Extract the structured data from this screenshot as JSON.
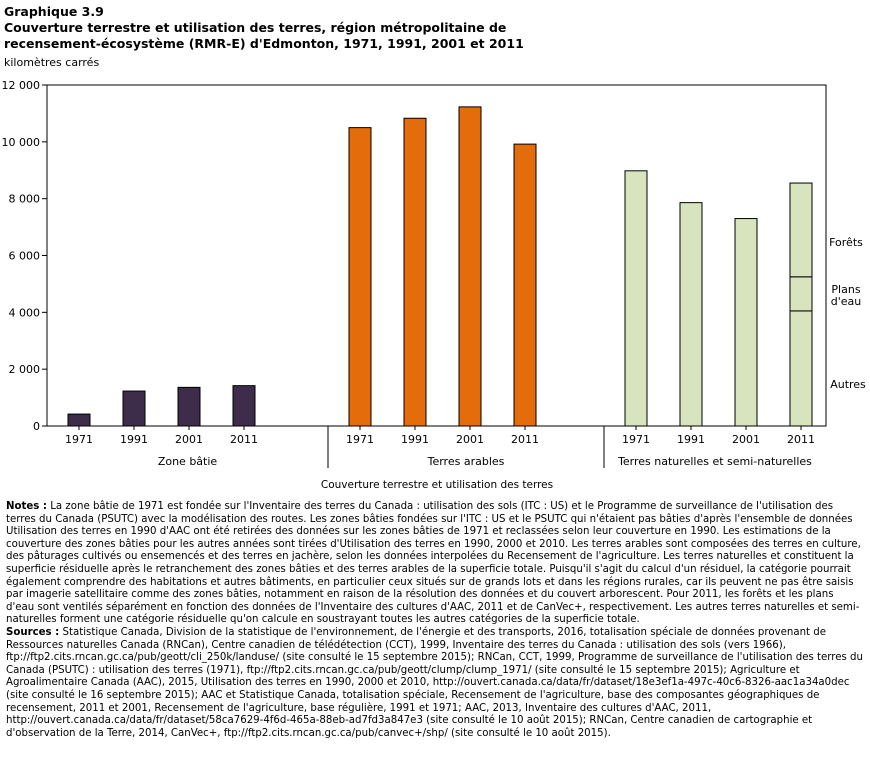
{
  "title": {
    "line1": "Graphique  3.9",
    "line2": "Couverture terrestre et utilisation des terres, région métropolitaine de",
    "line3": "recensement-écosystème (RMR-E) d'Edmonton, 1971, 1991, 2001 et 2011"
  },
  "unit_label": "kilomètres carrés",
  "colors": {
    "zone_batie": "#3d2d4a",
    "terres_arables": "#e46c0a",
    "terres_naturelles": "#d7e4bd",
    "axis": "#000000"
  },
  "chart_data": {
    "type": "bar",
    "title": "Couverture terrestre et utilisation des terres, région métropolitaine de recensement-écosystème (RMR-E) d'Edmonton, 1971, 1991, 2001 et 2011",
    "ylabel": "kilomètres carrés",
    "xlabel": "Couverture terrestre et utilisation des terres",
    "ylim": [
      0,
      12000
    ],
    "yticks": [
      0,
      2000,
      4000,
      6000,
      8000,
      10000,
      12000
    ],
    "ytick_labels": [
      "0",
      "2 000",
      "4 000",
      "6 000",
      "8 000",
      "10 000",
      "12 000"
    ],
    "groups": [
      {
        "name": "Zone bâtie",
        "color_key": "zone_batie",
        "categories": [
          "1971",
          "1991",
          "2001",
          "2011"
        ],
        "values": [
          420,
          1230,
          1360,
          1420
        ]
      },
      {
        "name": "Terres arables",
        "color_key": "terres_arables",
        "categories": [
          "1971",
          "1991",
          "2001",
          "2011"
        ],
        "values": [
          10500,
          10830,
          11230,
          9920
        ]
      },
      {
        "name": "Terres naturelles et semi-naturelles",
        "color_key": "terres_naturelles",
        "categories": [
          "1971",
          "1991",
          "2001",
          "2011"
        ],
        "values": [
          8980,
          7860,
          7300,
          8550
        ]
      }
    ],
    "stacked_2011_naturelles": [
      {
        "name": "Autres",
        "value": 4050
      },
      {
        "name": "Plans d'eau",
        "value": 1200
      },
      {
        "name": "Forêts",
        "value": 3300
      }
    ],
    "annotations": {
      "forets": "Forêts",
      "plans_line1": "Plans",
      "plans_line2": "d'eau",
      "autres": "Autres"
    }
  },
  "notes": {
    "label": "Notes :",
    "text": "La zone bâtie de 1971 est fondée sur l'Inventaire des terres du Canada : utilisation des sols (ITC : US) et le Programme de surveillance de l'utilisation des terres du Canada (PSUTC) avec la modélisation des routes. Les zones bâties fondées sur l'ITC : US et le PSUTC qui n'étaient pas bâties d'après l'ensemble de données Utilisation des terres en 1990 d'AAC ont été retirées des données sur les zones bâties de 1971 et reclassées selon leur couverture en 1990. Les estimations de la couverture des zones bâties pour les autres années sont tirées d'Utilisation des terres en 1990, 2000 et 2010. Les terres arables sont composées des terres en culture, des pâturages cultivés ou ensemencés et des terres en jachère, selon les données interpolées du Recensement de l'agriculture. Les terres naturelles et constituent la superficie résiduelle après le retranchement des zones bâties et des terres arables de la superficie totale. Puisqu'il s'agit du calcul d'un résiduel, la catégorie pourrait également comprendre des habitations et autres bâtiments, en particulier ceux situés sur de grands lots et dans les régions rurales, car ils peuvent ne pas être saisis par imagerie satellitaire comme des zones bâties, notamment en raison de la résolution des données et du couvert arborescent. Pour 2011, les forêts et les plans d'eau sont ventilés séparément en fonction des données de l'Inventaire des cultures d'AAC, 2011 et de CanVec+, respectivement. Les autres terres naturelles et semi-naturelles forment une catégorie résiduelle qu'on calcule en soustrayant toutes les autres catégories de la superficie totale."
  },
  "sources": {
    "label": "Sources :",
    "text": "Statistique Canada, Division de la statistique de l'environnement, de l'énergie et des transports, 2016, totalisation spéciale de données provenant de Ressources naturelles Canada (RNCan), Centre canadien de télédétection (CCT), 1999, Inventaire des terres du Canada : utilisation des sols (vers 1966), ftp://ftp2.cits.rncan.gc.ca/pub/geott/cli_250k/landuse/ (site consulté le 15 septembre 2015); RNCan, CCT, 1999, Programme de surveillance de l'utilisation des terres du Canada (PSUTC) : utilisation des terres (1971), ftp://ftp2.cits.rncan.gc.ca/pub/geott/clump/clump_1971/ (site consulté le 15 septembre 2015); Agriculture et Agroalimentaire Canada (AAC), 2015, Utilisation des terres en 1990, 2000 et 2010, http://ouvert.canada.ca/data/fr/dataset/18e3ef1a-497c-40c6-8326-aac1a34a0dec (site consulté le 16 septembre 2015); AAC et Statistique Canada, totalisation spéciale, Recensement de l'agriculture, base des composantes géographiques de recensement, 2011 et 2001, Recensement de l'agriculture, base régulière, 1991 et 1971; AAC, 2013, Inventaire des cultures d'AAC, 2011, http://ouvert.canada.ca/data/fr/dataset/58ca7629-4f6d-465a-88eb-ad7fd3a847e3 (site consulté le 10 août 2015); RNCan, Centre canadien de cartographie et d'observation de la Terre, 2014, CanVec+, ftp://ftp2.cits.rncan.gc.ca/pub/canvec+/shp/ (site consulté le 10 août 2015)."
  }
}
